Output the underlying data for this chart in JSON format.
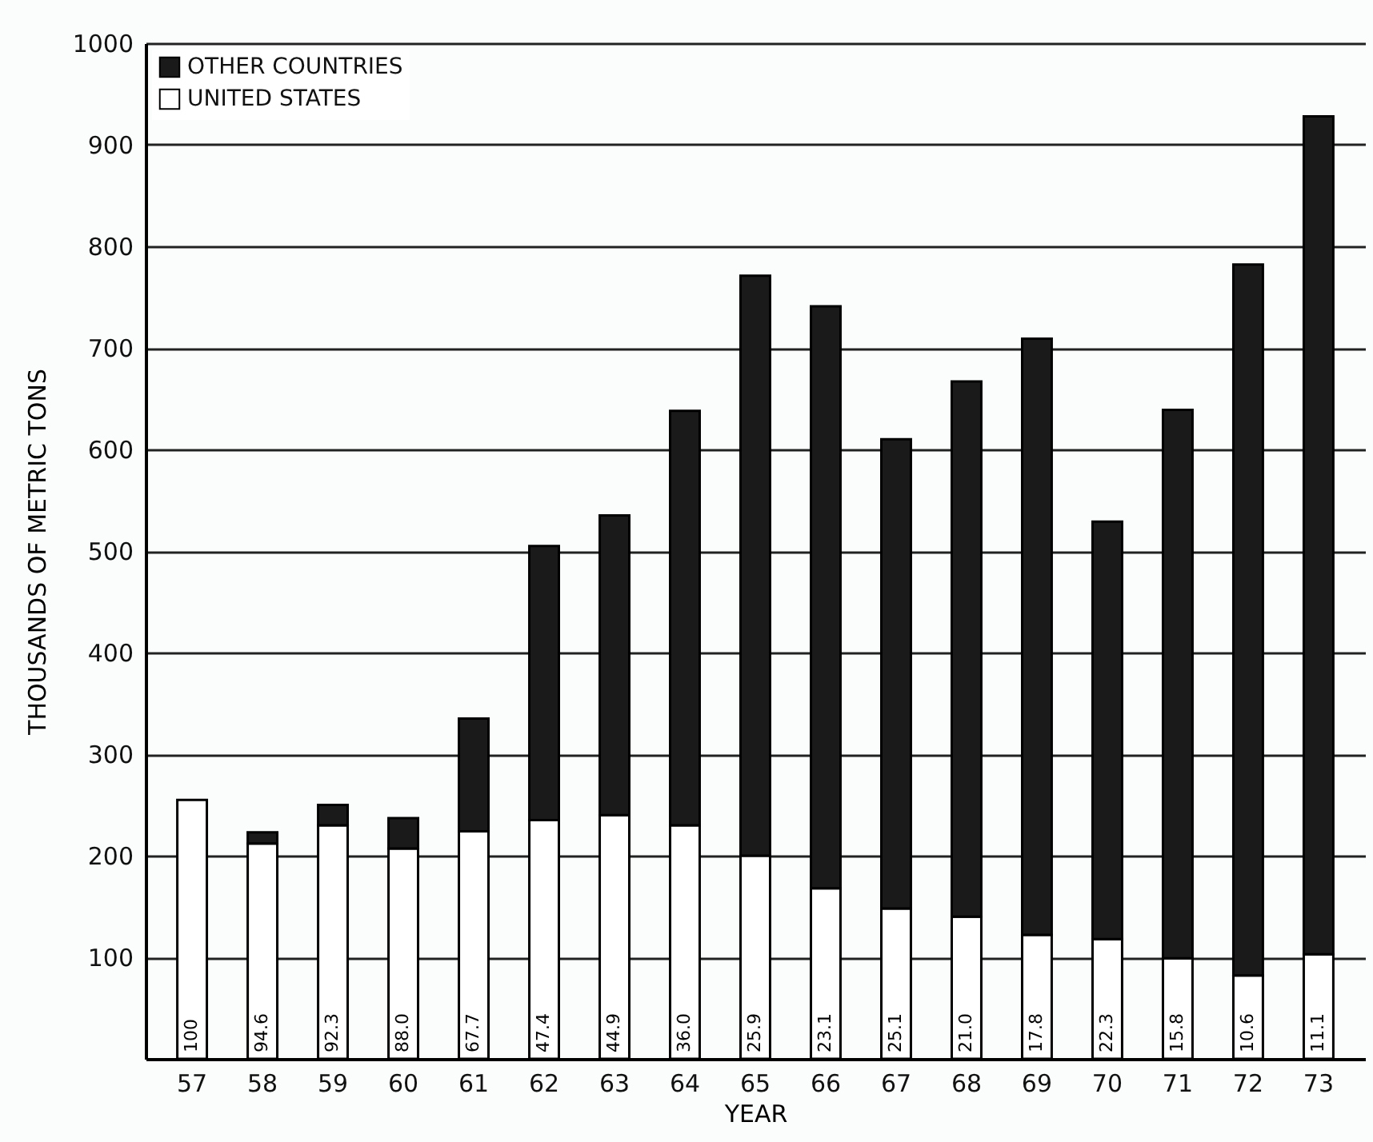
{
  "chart_data": {
    "type": "bar",
    "stacked": true,
    "xlabel": "YEAR",
    "ylabel": "THOUSANDS OF METRIC TONS",
    "categories": [
      "57",
      "58",
      "59",
      "60",
      "61",
      "62",
      "63",
      "64",
      "65",
      "66",
      "67",
      "68",
      "69",
      "70",
      "71",
      "72",
      "73"
    ],
    "series": [
      {
        "name": "UNITED STATES",
        "color": "#ffffff",
        "values": [
          255,
          212,
          230,
          207,
          224,
          235,
          240,
          230,
          200,
          168,
          148,
          140,
          122,
          118,
          99,
          82,
          103
        ]
      },
      {
        "name": "OTHER COUNTRIES",
        "color": "#1a1a1a",
        "values": [
          null,
          11,
          20,
          30,
          111,
          270,
          295,
          408,
          571,
          573,
          462,
          527,
          587,
          411,
          540,
          700,
          825
        ]
      }
    ],
    "annotations": [
      "100",
      "94.6",
      "92.3",
      "88.0",
      "67.7",
      "47.4",
      "44.9",
      "36.0",
      "25.9",
      "23.1",
      "25.1",
      "21.0",
      "17.8",
      "22.3",
      "15.8",
      "10.6",
      "11.1"
    ],
    "ylim": [
      0,
      1000
    ],
    "yticks": [
      100,
      200,
      300,
      400,
      500,
      600,
      700,
      800,
      900,
      1000
    ],
    "grid": "y",
    "legend": "top left"
  }
}
